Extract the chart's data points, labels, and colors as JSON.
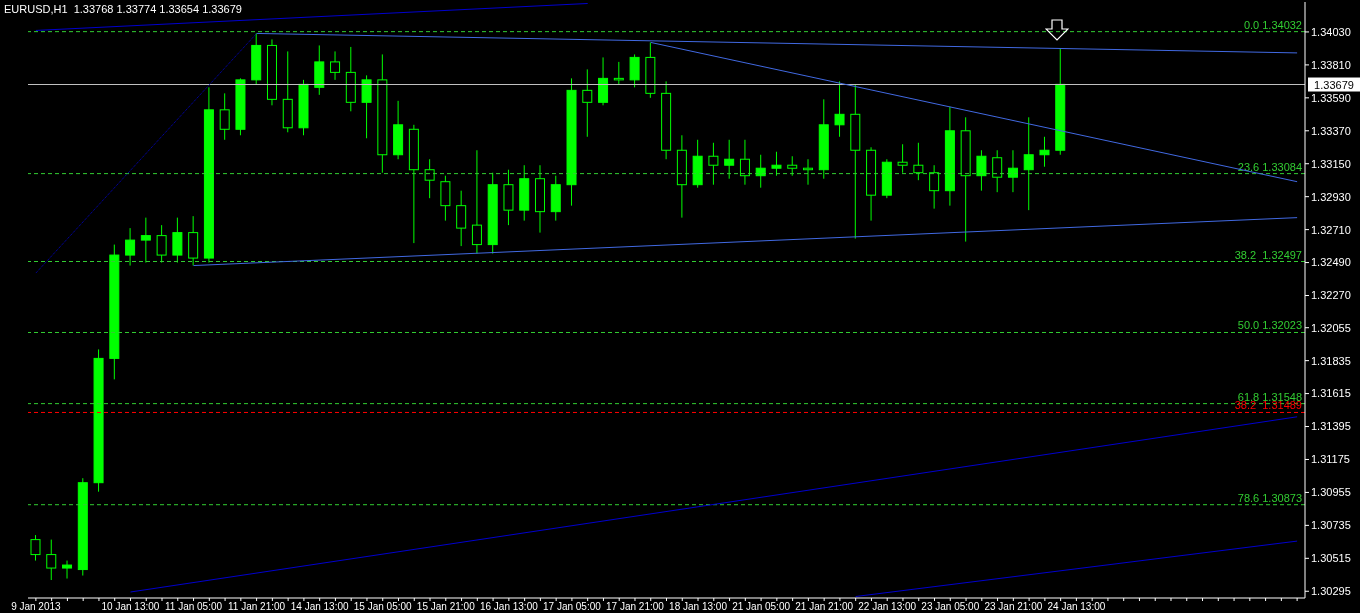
{
  "chart_data": {
    "type": "candlestick",
    "title": "EURUSD,H1  1.33768 1.33774 1.33654 1.33679",
    "color": "#00ff00",
    "categories": [
      "9 Jan 2013",
      null,
      null,
      null,
      null,
      null,
      "10 Jan 13:00",
      null,
      null,
      null,
      "11 Jan 05:00",
      null,
      null,
      null,
      "11 Jan 21:00",
      null,
      null,
      null,
      "14 Jan 13:00",
      null,
      null,
      null,
      "15 Jan 05:00",
      null,
      null,
      null,
      "15 Jan 21:00",
      null,
      null,
      null,
      "16 Jan 13:00",
      null,
      null,
      null,
      "17 Jan 05:00",
      null,
      null,
      null,
      "17 Jan 21:00",
      null,
      null,
      null,
      "18 Jan 13:00",
      null,
      null,
      null,
      "21 Jan 05:00",
      null,
      null,
      null,
      "21 Jan 21:00",
      null,
      null,
      null,
      "22 Jan 13:00",
      null,
      null,
      null,
      "23 Jan 05:00",
      null,
      null,
      null,
      "23 Jan 21:00",
      null,
      null,
      null,
      "24 Jan 13:00",
      null,
      null,
      null,
      null,
      null,
      null,
      null,
      null,
      null,
      null,
      null,
      null,
      null,
      null
    ],
    "ohlc": [
      [
        1.3064,
        1.3067,
        1.305,
        1.3054
      ],
      [
        1.3054,
        1.3064,
        1.3037,
        1.3045
      ],
      [
        1.3045,
        1.305,
        1.3038,
        1.3047
      ],
      [
        1.3044,
        1.3105,
        1.304,
        1.3102
      ],
      [
        1.3102,
        1.3191,
        1.3096,
        1.3185
      ],
      [
        1.3185,
        1.3261,
        1.3171,
        1.3254
      ],
      [
        1.3254,
        1.3272,
        1.3247,
        1.3264
      ],
      [
        1.3264,
        1.3279,
        1.3249,
        1.3267
      ],
      [
        1.3267,
        1.3274,
        1.3249,
        1.3254
      ],
      [
        1.3254,
        1.3279,
        1.3249,
        1.3269
      ],
      [
        1.3269,
        1.328,
        1.3247,
        1.3252
      ],
      [
        1.3252,
        1.3366,
        1.3249,
        1.3351
      ],
      [
        1.3351,
        1.3362,
        1.3331,
        1.3338
      ],
      [
        1.3338,
        1.3372,
        1.3334,
        1.3371
      ],
      [
        1.3371,
        1.3402,
        1.3368,
        1.3394
      ],
      [
        1.3394,
        1.3398,
        1.3354,
        1.3358
      ],
      [
        1.3358,
        1.339,
        1.3336,
        1.3339
      ],
      [
        1.3339,
        1.3371,
        1.3334,
        1.3368
      ],
      [
        1.3366,
        1.3394,
        1.3361,
        1.3383
      ],
      [
        1.3383,
        1.339,
        1.3371,
        1.3376
      ],
      [
        1.3376,
        1.3393,
        1.335,
        1.3356
      ],
      [
        1.3356,
        1.3374,
        1.3332,
        1.3371
      ],
      [
        1.3371,
        1.3388,
        1.3309,
        1.3321
      ],
      [
        1.3321,
        1.3357,
        1.3318,
        1.3341
      ],
      [
        1.3338,
        1.3341,
        1.3262,
        1.3311
      ],
      [
        1.3311,
        1.3318,
        1.3292,
        1.3304
      ],
      [
        1.3303,
        1.3307,
        1.3277,
        1.3287
      ],
      [
        1.3287,
        1.3297,
        1.326,
        1.3272
      ],
      [
        1.3274,
        1.3324,
        1.3255,
        1.3261
      ],
      [
        1.3261,
        1.3309,
        1.3255,
        1.3301
      ],
      [
        1.3301,
        1.3311,
        1.3274,
        1.3284
      ],
      [
        1.3284,
        1.3314,
        1.3277,
        1.3305
      ],
      [
        1.3305,
        1.3314,
        1.3269,
        1.3283
      ],
      [
        1.3283,
        1.3307,
        1.3277,
        1.3301
      ],
      [
        1.3301,
        1.3372,
        1.3287,
        1.3364
      ],
      [
        1.3364,
        1.3378,
        1.3333,
        1.3356
      ],
      [
        1.3356,
        1.3386,
        1.3354,
        1.3372
      ],
      [
        1.3372,
        1.3383,
        1.3368,
        1.3371
      ],
      [
        1.3371,
        1.3388,
        1.3366,
        1.3386
      ],
      [
        1.3386,
        1.3396,
        1.3359,
        1.3362
      ],
      [
        1.3362,
        1.337,
        1.3318,
        1.3324
      ],
      [
        1.3324,
        1.3334,
        1.3279,
        1.3301
      ],
      [
        1.3301,
        1.3331,
        1.3299,
        1.332
      ],
      [
        1.332,
        1.3329,
        1.3301,
        1.3314
      ],
      [
        1.3314,
        1.3331,
        1.3305,
        1.3318
      ],
      [
        1.3318,
        1.3331,
        1.3301,
        1.3307
      ],
      [
        1.3307,
        1.3321,
        1.3299,
        1.3312
      ],
      [
        1.3312,
        1.3323,
        1.3307,
        1.3314
      ],
      [
        1.3314,
        1.332,
        1.3307,
        1.3312
      ],
      [
        1.3312,
        1.3318,
        1.3301,
        1.3311
      ],
      [
        1.3311,
        1.3358,
        1.3305,
        1.3341
      ],
      [
        1.3341,
        1.337,
        1.3333,
        1.3348
      ],
      [
        1.3348,
        1.3368,
        1.3265,
        1.3324
      ],
      [
        1.3324,
        1.3326,
        1.3277,
        1.3294
      ],
      [
        1.3294,
        1.3318,
        1.3292,
        1.3316
      ],
      [
        1.3316,
        1.3328,
        1.3309,
        1.3314
      ],
      [
        1.3314,
        1.3329,
        1.3304,
        1.3309
      ],
      [
        1.3309,
        1.3314,
        1.3285,
        1.3297
      ],
      [
        1.3297,
        1.3353,
        1.3287,
        1.3337
      ],
      [
        1.3337,
        1.3346,
        1.3263,
        1.3307
      ],
      [
        1.3307,
        1.3324,
        1.3297,
        1.332
      ],
      [
        1.3319,
        1.3324,
        1.3296,
        1.3306
      ],
      [
        1.3306,
        1.3324,
        1.3296,
        1.3312
      ],
      [
        1.3311,
        1.3346,
        1.3284,
        1.3321
      ],
      [
        1.3321,
        1.3333,
        1.3313,
        1.3324
      ],
      [
        1.3324,
        1.3392,
        1.3321,
        1.3368
      ],
      null,
      null,
      null,
      null,
      null,
      null,
      null,
      null,
      null,
      null,
      null,
      null,
      null,
      null,
      null
    ],
    "series": [
      {
        "type": "line",
        "color": "#0000cd",
        "line_style": "solid",
        "values": [
          1.3404,
          null,
          null,
          null,
          null,
          null,
          null,
          null,
          null,
          null,
          null,
          null,
          null,
          null,
          null,
          null,
          null,
          null,
          null,
          null,
          null,
          null,
          null,
          null,
          null,
          null,
          null,
          null,
          null,
          null,
          null,
          null,
          null,
          null,
          null,
          1.3422,
          null,
          null,
          null,
          null,
          null,
          null,
          null,
          null,
          null,
          null,
          null,
          null,
          null,
          null,
          null,
          null,
          null,
          null,
          null,
          null,
          null,
          null,
          null,
          null,
          null,
          null,
          null,
          null,
          null,
          null,
          null,
          null,
          null,
          null,
          null,
          null,
          null,
          null,
          null,
          null,
          null,
          null,
          null,
          null,
          null
        ]
      },
      {
        "type": "line",
        "color": "#4169e1",
        "line_style": "solid",
        "values": [
          null,
          null,
          null,
          null,
          null,
          null,
          null,
          null,
          null,
          null,
          null,
          null,
          null,
          null,
          1.3402,
          null,
          null,
          null,
          null,
          null,
          null,
          null,
          null,
          null,
          null,
          null,
          null,
          null,
          null,
          null,
          null,
          null,
          null,
          null,
          null,
          null,
          null,
          null,
          null,
          null,
          null,
          null,
          null,
          null,
          null,
          null,
          null,
          null,
          null,
          null,
          null,
          null,
          null,
          null,
          null,
          null,
          null,
          null,
          null,
          null,
          null,
          null,
          null,
          null,
          null,
          null,
          null,
          null,
          null,
          null,
          null,
          null,
          null,
          null,
          null,
          null,
          null,
          null,
          null,
          null,
          1.3389
        ]
      },
      {
        "type": "line",
        "color": "#4169e1",
        "line_style": "solid",
        "values": [
          null,
          null,
          null,
          null,
          null,
          null,
          null,
          null,
          null,
          null,
          null,
          null,
          null,
          null,
          null,
          null,
          null,
          null,
          null,
          null,
          null,
          null,
          null,
          null,
          null,
          null,
          null,
          null,
          null,
          null,
          null,
          null,
          null,
          null,
          null,
          null,
          null,
          null,
          null,
          1.3396,
          null,
          null,
          null,
          null,
          null,
          null,
          null,
          null,
          null,
          null,
          null,
          null,
          null,
          null,
          null,
          null,
          null,
          null,
          null,
          null,
          null,
          null,
          null,
          null,
          null,
          null,
          null,
          null,
          null,
          null,
          null,
          null,
          null,
          null,
          null,
          null,
          null,
          null,
          null,
          null,
          1.3303
        ]
      },
      {
        "type": "line",
        "color": "#4169e1",
        "line_style": "solid",
        "values": [
          null,
          null,
          null,
          null,
          null,
          null,
          null,
          null,
          null,
          null,
          1.3247,
          null,
          null,
          null,
          null,
          null,
          null,
          null,
          null,
          null,
          null,
          null,
          null,
          null,
          null,
          null,
          null,
          null,
          null,
          null,
          null,
          null,
          null,
          null,
          null,
          null,
          null,
          null,
          null,
          null,
          null,
          null,
          null,
          null,
          null,
          null,
          null,
          null,
          null,
          null,
          null,
          null,
          null,
          null,
          null,
          null,
          null,
          null,
          null,
          null,
          null,
          null,
          null,
          null,
          null,
          null,
          null,
          null,
          null,
          null,
          null,
          null,
          null,
          null,
          null,
          null,
          null,
          null,
          null,
          null,
          1.3279
        ]
      },
      {
        "type": "line",
        "color": "#0000cd",
        "line_style": "dotted",
        "values": [
          1.3242,
          null,
          null,
          null,
          null,
          null,
          null,
          null,
          null,
          null,
          null,
          null,
          null,
          null,
          1.3402,
          null,
          null,
          null,
          null,
          null,
          null,
          null,
          null,
          null,
          null,
          null,
          null,
          null,
          null,
          null,
          null,
          null,
          null,
          null,
          null,
          null,
          null,
          null,
          null,
          null,
          null,
          null,
          null,
          null,
          null,
          null,
          null,
          null,
          null,
          null,
          null,
          null,
          null,
          null,
          null,
          null,
          null,
          null,
          null,
          null,
          null,
          null,
          null,
          null,
          null,
          null,
          null,
          null,
          null,
          null,
          null,
          null,
          null,
          null,
          null,
          null,
          null,
          null,
          null,
          null,
          null
        ]
      },
      {
        "type": "line",
        "color": "#0000cd",
        "line_style": "solid",
        "values": [
          null,
          null,
          null,
          null,
          null,
          null,
          1.3029,
          null,
          null,
          null,
          null,
          null,
          null,
          null,
          null,
          null,
          null,
          null,
          null,
          null,
          null,
          null,
          null,
          null,
          null,
          null,
          null,
          null,
          null,
          null,
          null,
          null,
          null,
          null,
          null,
          null,
          null,
          null,
          null,
          null,
          null,
          null,
          null,
          null,
          null,
          null,
          null,
          null,
          null,
          null,
          null,
          null,
          null,
          null,
          null,
          null,
          null,
          null,
          null,
          null,
          null,
          null,
          null,
          null,
          null,
          null,
          null,
          null,
          null,
          null,
          null,
          null,
          null,
          null,
          null,
          null,
          null,
          null,
          null,
          null,
          1.3146
        ]
      },
      {
        "type": "line",
        "color": "#0000cd",
        "line_style": "solid",
        "values": [
          null,
          null,
          null,
          null,
          null,
          null,
          null,
          null,
          null,
          null,
          null,
          null,
          null,
          null,
          null,
          null,
          null,
          null,
          null,
          null,
          null,
          null,
          null,
          null,
          null,
          null,
          null,
          null,
          null,
          null,
          null,
          null,
          null,
          null,
          null,
          null,
          null,
          null,
          null,
          null,
          null,
          null,
          null,
          null,
          null,
          null,
          null,
          null,
          null,
          null,
          null,
          null,
          1.3026,
          null,
          null,
          null,
          null,
          null,
          null,
          null,
          null,
          null,
          null,
          null,
          null,
          null,
          null,
          null,
          null,
          null,
          null,
          null,
          null,
          null,
          null,
          null,
          null,
          null,
          null,
          null,
          1.3063
        ]
      }
    ],
    "ref_lines": [
      {
        "axis": "y",
        "value": 1.34032,
        "label": "0.0 1.34032",
        "color": "#32cd32",
        "line_style": "dashed"
      },
      {
        "axis": "y",
        "value": 1.33679,
        "label": "1.33679",
        "color": "#c0c0c0",
        "line_style": "solid"
      },
      {
        "axis": "y",
        "value": 1.33084,
        "label": "23.6 1.33084",
        "color": "#32cd32",
        "line_style": "dashed"
      },
      {
        "axis": "y",
        "value": 1.32497,
        "label": "38.2  1.32497",
        "color": "#32cd32",
        "line_style": "dashed"
      },
      {
        "axis": "y",
        "value": 1.32023,
        "label": "50.0 1.32023",
        "color": "#32cd32",
        "line_style": "dashed"
      },
      {
        "axis": "y",
        "value": 1.31548,
        "label": "61.8 1.31548",
        "color": "#32cd32",
        "line_style": "dashed"
      },
      {
        "axis": "y",
        "value": 1.31489,
        "label": "38.2  1.31489",
        "color": "#ff0000",
        "line_style": "dashed"
      },
      {
        "axis": "y",
        "value": 1.30873,
        "label": "78.6 1.30873",
        "color": "#32cd32",
        "line_style": "dashed"
      }
    ],
    "ylim": [
      1.3025,
      1.3423
    ],
    "yticks": [
      {
        "value": 1.3403,
        "label": "1.34030"
      },
      {
        "value": 1.3381,
        "label": "1.33810"
      },
      {
        "value": 1.3359,
        "label": "1.33590"
      },
      {
        "value": 1.3337,
        "label": "1.33370"
      },
      {
        "value": 1.3315,
        "label": "1.33150"
      },
      {
        "value": 1.3293,
        "label": "1.32930"
      },
      {
        "value": 1.3271,
        "label": "1.32710"
      },
      {
        "value": 1.3249,
        "label": "1.32490"
      },
      {
        "value": 1.3227,
        "label": "1.32270"
      },
      {
        "value": 1.32055,
        "label": "1.32055"
      },
      {
        "value": 1.31835,
        "label": "1.31835"
      },
      {
        "value": 1.31615,
        "label": "1.31615"
      },
      {
        "value": 1.31395,
        "label": "1.31395"
      },
      {
        "value": 1.31175,
        "label": "1.31175"
      },
      {
        "value": 1.30955,
        "label": "1.30955"
      },
      {
        "value": 1.30735,
        "label": "1.30735"
      },
      {
        "value": 1.30515,
        "label": "1.30515"
      },
      {
        "value": 1.30295,
        "label": "1.30295"
      }
    ]
  }
}
